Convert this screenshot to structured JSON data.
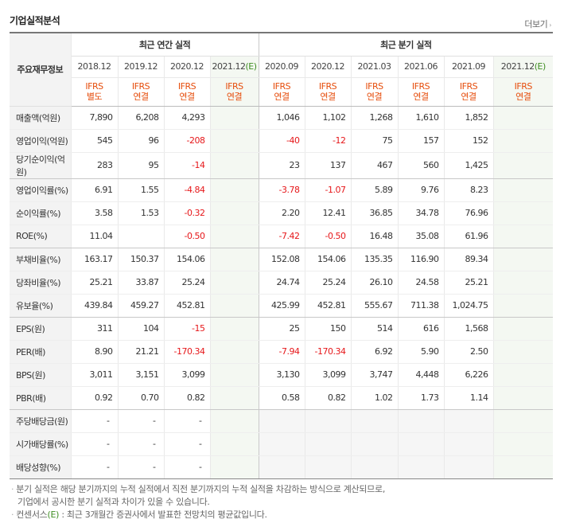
{
  "title": "기업실적분석",
  "more_label": "더보기",
  "groups": {
    "annual": "최근 연간 실적",
    "quarter": "최근 분기 실적"
  },
  "row_header_label": "주요재무정보",
  "periods": [
    "2018.12",
    "2019.12",
    "2020.12",
    "2021.12",
    "2020.09",
    "2020.12",
    "2021.03",
    "2021.06",
    "2021.09",
    "2021.12"
  ],
  "estimate_tag": "(E)",
  "ifrs": [
    [
      "IFRS",
      "별도"
    ],
    [
      "IFRS",
      "연결"
    ],
    [
      "IFRS",
      "연결"
    ],
    [
      "IFRS",
      "연결"
    ],
    [
      "IFRS",
      "연결"
    ],
    [
      "IFRS",
      "연결"
    ],
    [
      "IFRS",
      "연결"
    ],
    [
      "IFRS",
      "연결"
    ],
    [
      "IFRS",
      "연결"
    ],
    [
      "IFRS",
      "연결"
    ]
  ],
  "rows": [
    {
      "label": "매출액(억원)",
      "values": [
        "7,890",
        "6,208",
        "4,293",
        "",
        "1,046",
        "1,102",
        "1,268",
        "1,610",
        "1,852",
        ""
      ]
    },
    {
      "label": "영업이익(억원)",
      "values": [
        "545",
        "96",
        "-208",
        "",
        "-40",
        "-12",
        "75",
        "157",
        "152",
        ""
      ]
    },
    {
      "label": "당기순이익(억원)",
      "values": [
        "283",
        "95",
        "-14",
        "",
        "23",
        "137",
        "467",
        "560",
        "1,425",
        ""
      ]
    },
    {
      "label": "영업이익률(%)",
      "values": [
        "6.91",
        "1.55",
        "-4.84",
        "",
        "-3.78",
        "-1.07",
        "5.89",
        "9.76",
        "8.23",
        ""
      ]
    },
    {
      "label": "순이익률(%)",
      "values": [
        "3.58",
        "1.53",
        "-0.32",
        "",
        "2.20",
        "12.41",
        "36.85",
        "34.78",
        "76.96",
        ""
      ]
    },
    {
      "label": "ROE(%)",
      "values": [
        "11.04",
        "",
        "-0.50",
        "",
        "-7.42",
        "-0.50",
        "16.48",
        "35.08",
        "61.96",
        ""
      ]
    },
    {
      "label": "부채비율(%)",
      "values": [
        "163.17",
        "150.37",
        "154.06",
        "",
        "152.08",
        "154.06",
        "135.35",
        "116.90",
        "89.34",
        ""
      ]
    },
    {
      "label": "당좌비율(%)",
      "values": [
        "25.21",
        "33.87",
        "25.24",
        "",
        "24.74",
        "25.24",
        "26.10",
        "24.58",
        "25.21",
        ""
      ]
    },
    {
      "label": "유보율(%)",
      "values": [
        "439.84",
        "459.27",
        "452.81",
        "",
        "425.99",
        "452.81",
        "555.67",
        "711.38",
        "1,024.75",
        ""
      ]
    },
    {
      "label": "EPS(원)",
      "values": [
        "311",
        "104",
        "-15",
        "",
        "25",
        "150",
        "514",
        "616",
        "1,568",
        ""
      ]
    },
    {
      "label": "PER(배)",
      "values": [
        "8.90",
        "21.21",
        "-170.34",
        "",
        "-7.94",
        "-170.34",
        "6.92",
        "5.90",
        "2.50",
        ""
      ]
    },
    {
      "label": "BPS(원)",
      "values": [
        "3,011",
        "3,151",
        "3,099",
        "",
        "3,130",
        "3,099",
        "3,747",
        "4,448",
        "6,226",
        ""
      ]
    },
    {
      "label": "PBR(배)",
      "values": [
        "0.92",
        "0.70",
        "0.82",
        "",
        "0.58",
        "0.82",
        "1.02",
        "1.73",
        "1.14",
        ""
      ]
    },
    {
      "label": "주당배당금(원)",
      "values": [
        "-",
        "-",
        "-",
        "",
        "",
        "",
        "",
        "",
        "",
        ""
      ]
    },
    {
      "label": "시가배당률(%)",
      "values": [
        "-",
        "-",
        "-",
        "",
        "",
        "",
        "",
        "",
        "",
        ""
      ]
    },
    {
      "label": "배당성향(%)",
      "values": [
        "-",
        "-",
        "-",
        "",
        "",
        "",
        "",
        "",
        "",
        ""
      ]
    }
  ],
  "notes": {
    "line1": "분기 실적은 해당 분기까지의 누적 실적에서 직전 분기까지의 누적 실적을 차감하는 방식으로 계산되므로,",
    "line2": "기업에서 공시한 분기 실적과 차이가 있을 수 있습니다.",
    "line3_pre": "컨센서스",
    "line3_post": " : 최근 3개월간 증권사에서 발표한 전망치의 평균값입니다."
  },
  "colors": {
    "negative": "#e6171a",
    "ifrs": "#e64d0c",
    "estimate": "#3f8e23",
    "estimate_bg": "#f4f8f2"
  }
}
